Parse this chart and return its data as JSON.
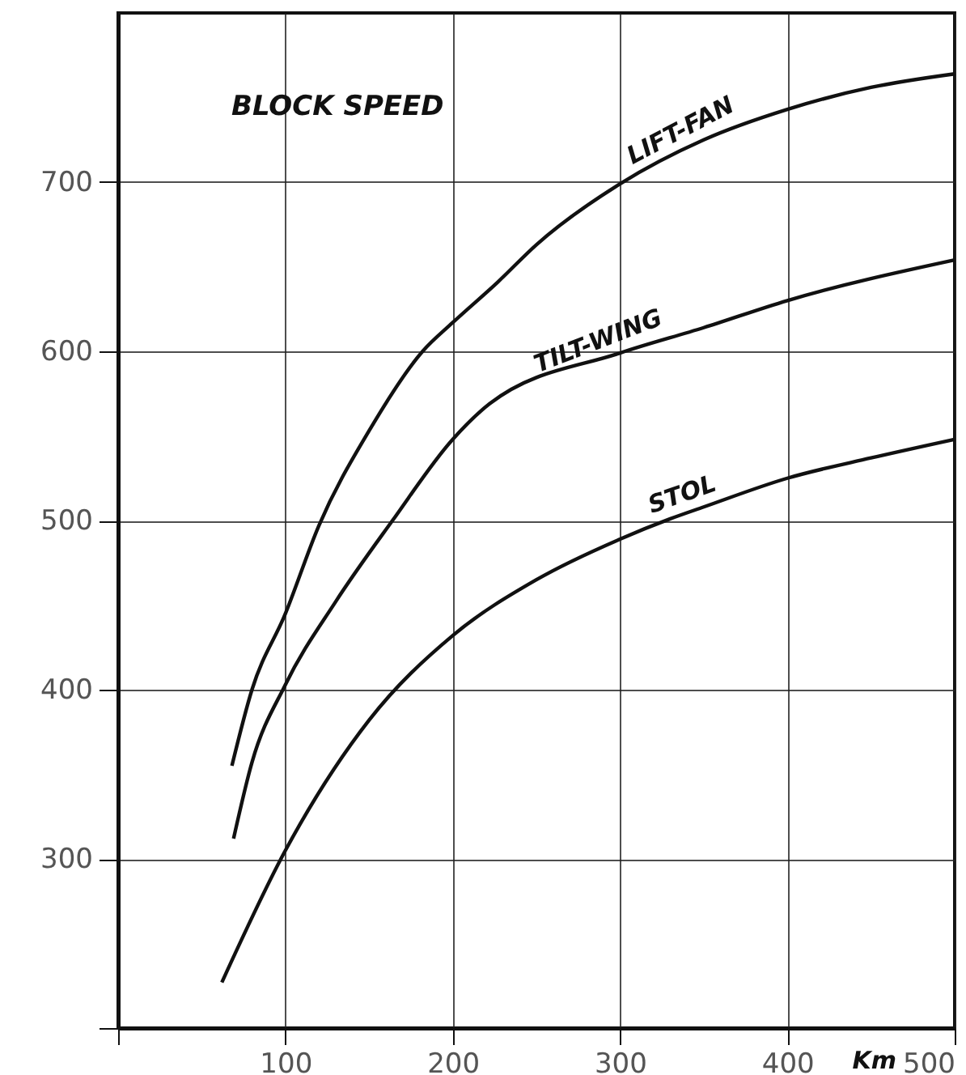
{
  "chart_data": {
    "type": "line",
    "title": "BLOCK SPEED",
    "xlabel": "Km",
    "xlim": [
      0,
      500
    ],
    "ylim": [
      200,
      800
    ],
    "xticks": [
      {
        "value": 0,
        "label": null
      },
      100,
      200,
      300,
      400,
      500
    ],
    "yticks": [
      {
        "value": 200,
        "label": null
      },
      300,
      400,
      500,
      600,
      700
    ],
    "grid": true,
    "marker": "none",
    "line_style": "solid",
    "series": [
      {
        "name": "LIFT-FAN",
        "color": "#111111",
        "x": [
          68,
          80,
          100,
          120,
          150,
          182,
          200,
          227,
          250,
          300,
          350,
          400,
          450,
          500
        ],
        "values": [
          355,
          400,
          445,
          497,
          553,
          600,
          617,
          641,
          663,
          699,
          725,
          743,
          756,
          764
        ]
      },
      {
        "name": "TILT-WING",
        "color": "#111111",
        "x": [
          69,
          80,
          100,
          130,
          164,
          200,
          222,
          300,
          350,
          400,
          500
        ],
        "values": [
          312,
          357,
          403,
          452,
          500,
          548,
          569,
          599,
          614,
          630,
          654
        ]
      },
      {
        "name": "STOL",
        "color": "#111111",
        "x": [
          62,
          100,
          150,
          200,
          250,
          300,
          330,
          350,
          400,
          450,
          500
        ],
        "values": [
          227,
          305,
          382,
          432,
          465,
          489,
          501,
          508,
          525,
          537,
          548
        ]
      }
    ]
  }
}
